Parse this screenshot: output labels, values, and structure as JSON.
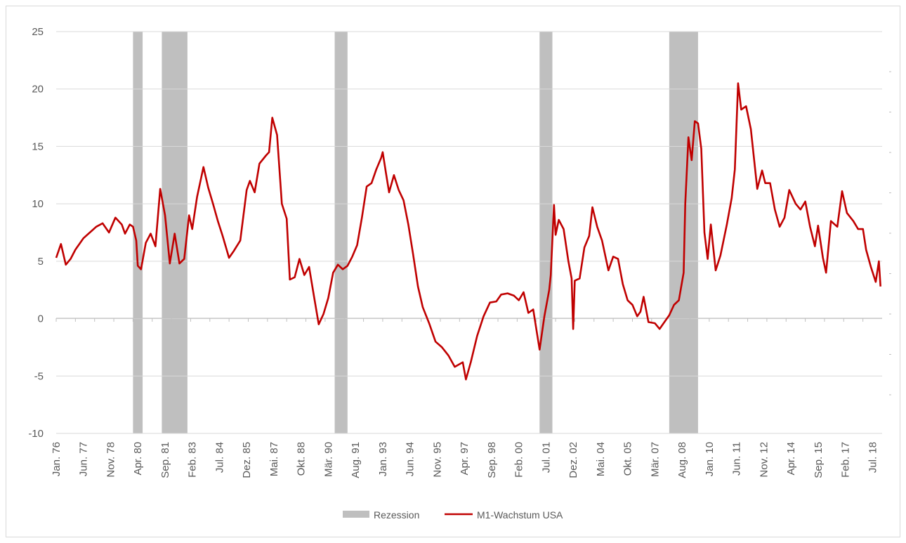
{
  "chart_data": {
    "type": "line",
    "title": "",
    "xlabel": "",
    "ylabel": "",
    "ylim": [
      -10,
      25
    ],
    "yticks": [
      25,
      20,
      15,
      10,
      5,
      0,
      -5,
      -10
    ],
    "ytick_labels": [
      "25",
      "20",
      "15",
      "10",
      "5",
      "0",
      "-5",
      "-10"
    ],
    "x_range": [
      "1976-01",
      "2019-01"
    ],
    "xtick_dates": [
      "1976-01",
      "1977-06",
      "1978-11",
      "1980-04",
      "1981-09",
      "1983-02",
      "1984-07",
      "1985-12",
      "1987-05",
      "1988-10",
      "1990-03",
      "1991-08",
      "1993-01",
      "1994-06",
      "1995-11",
      "1997-04",
      "1998-09",
      "2000-02",
      "2001-07",
      "2002-12",
      "2004-05",
      "2005-10",
      "2007-03",
      "2008-08",
      "2010-01",
      "2011-06",
      "2012-11",
      "2014-04",
      "2015-09",
      "2017-02",
      "2018-07"
    ],
    "xtick_labels": [
      "Jan. 76",
      "Jun. 77",
      "Nov. 78",
      "Apr. 80",
      "Sep. 81",
      "Feb. 83",
      "Jul. 84",
      "Dez. 85",
      "Mai. 87",
      "Okt. 88",
      "Mär. 90",
      "Aug. 91",
      "Jan. 93",
      "Jun. 94",
      "Nov. 95",
      "Apr. 97",
      "Sep. 98",
      "Feb. 00",
      "Jul. 01",
      "Dez. 02",
      "Mai. 04",
      "Okt. 05",
      "Mär. 07",
      "Aug. 08",
      "Jan. 10",
      "Jun. 11",
      "Nov. 12",
      "Apr. 14",
      "Sep. 15",
      "Feb. 17",
      "Jul. 18"
    ],
    "grid": true,
    "legend_placement": "bottom",
    "recessions": [
      {
        "start": "1980-01",
        "end": "1980-07"
      },
      {
        "start": "1981-07",
        "end": "1982-11"
      },
      {
        "start": "1990-07",
        "end": "1991-03"
      },
      {
        "start": "2001-03",
        "end": "2001-11"
      },
      {
        "start": "2007-12",
        "end": "2009-06"
      }
    ],
    "series": [
      {
        "name": "M1-Wachstum USA",
        "color": "#c00000",
        "points": [
          [
            "1976-01",
            5.3
          ],
          [
            "1976-04",
            6.5
          ],
          [
            "1976-07",
            4.7
          ],
          [
            "1976-10",
            5.2
          ],
          [
            "1977-01",
            6.0
          ],
          [
            "1977-06",
            7.0
          ],
          [
            "1977-10",
            7.5
          ],
          [
            "1978-02",
            8.0
          ],
          [
            "1978-06",
            8.3
          ],
          [
            "1978-10",
            7.5
          ],
          [
            "1979-02",
            8.8
          ],
          [
            "1979-06",
            8.2
          ],
          [
            "1979-08",
            7.4
          ],
          [
            "1979-11",
            8.2
          ],
          [
            "1980-01",
            8.0
          ],
          [
            "1980-03",
            6.8
          ],
          [
            "1980-04",
            4.6
          ],
          [
            "1980-06",
            4.3
          ],
          [
            "1980-09",
            6.6
          ],
          [
            "1980-12",
            7.4
          ],
          [
            "1981-03",
            6.3
          ],
          [
            "1981-06",
            11.3
          ],
          [
            "1981-09",
            9.0
          ],
          [
            "1981-12",
            4.8
          ],
          [
            "1982-03",
            7.4
          ],
          [
            "1982-06",
            4.8
          ],
          [
            "1982-09",
            5.2
          ],
          [
            "1982-12",
            9.0
          ],
          [
            "1983-02",
            7.8
          ],
          [
            "1983-05",
            10.6
          ],
          [
            "1983-09",
            13.2
          ],
          [
            "1983-12",
            11.4
          ],
          [
            "1984-03",
            10.0
          ],
          [
            "1984-06",
            8.5
          ],
          [
            "1984-09",
            7.2
          ],
          [
            "1985-01",
            5.3
          ],
          [
            "1985-04",
            5.9
          ],
          [
            "1985-08",
            6.8
          ],
          [
            "1985-12",
            11.2
          ],
          [
            "1986-02",
            12.0
          ],
          [
            "1986-05",
            11.0
          ],
          [
            "1986-08",
            13.5
          ],
          [
            "1986-12",
            14.2
          ],
          [
            "1987-02",
            14.5
          ],
          [
            "1987-04",
            17.5
          ],
          [
            "1987-07",
            16.0
          ],
          [
            "1987-10",
            10.0
          ],
          [
            "1988-01",
            8.7
          ],
          [
            "1988-03",
            3.4
          ],
          [
            "1988-06",
            3.6
          ],
          [
            "1988-09",
            5.2
          ],
          [
            "1988-12",
            3.8
          ],
          [
            "1989-03",
            4.5
          ],
          [
            "1989-06",
            2.0
          ],
          [
            "1989-09",
            -0.5
          ],
          [
            "1989-12",
            0.4
          ],
          [
            "1990-03",
            1.8
          ],
          [
            "1990-06",
            4.0
          ],
          [
            "1990-09",
            4.7
          ],
          [
            "1990-12",
            4.3
          ],
          [
            "1991-03",
            4.6
          ],
          [
            "1991-06",
            5.4
          ],
          [
            "1991-09",
            6.4
          ],
          [
            "1991-12",
            8.8
          ],
          [
            "1992-03",
            11.5
          ],
          [
            "1992-06",
            11.8
          ],
          [
            "1992-09",
            13.0
          ],
          [
            "1992-12",
            14.0
          ],
          [
            "1993-01",
            14.5
          ],
          [
            "1993-03",
            12.7
          ],
          [
            "1993-05",
            11.0
          ],
          [
            "1993-08",
            12.5
          ],
          [
            "1993-11",
            11.2
          ],
          [
            "1994-02",
            10.3
          ],
          [
            "1994-05",
            8.2
          ],
          [
            "1994-08",
            5.6
          ],
          [
            "1994-11",
            2.8
          ],
          [
            "1995-02",
            1.0
          ],
          [
            "1995-06",
            -0.4
          ],
          [
            "1995-10",
            -2.0
          ],
          [
            "1996-02",
            -2.5
          ],
          [
            "1996-06",
            -3.2
          ],
          [
            "1996-10",
            -4.2
          ],
          [
            "1997-03",
            -3.8
          ],
          [
            "1997-05",
            -5.3
          ],
          [
            "1997-08",
            -3.8
          ],
          [
            "1997-12",
            -1.5
          ],
          [
            "1998-04",
            0.2
          ],
          [
            "1998-08",
            1.4
          ],
          [
            "1998-12",
            1.5
          ],
          [
            "1999-03",
            2.1
          ],
          [
            "1999-07",
            2.2
          ],
          [
            "1999-11",
            2.0
          ],
          [
            "2000-02",
            1.6
          ],
          [
            "2000-05",
            2.3
          ],
          [
            "2000-08",
            0.5
          ],
          [
            "2000-11",
            0.8
          ],
          [
            "2001-03",
            -2.7
          ],
          [
            "2001-06",
            0.2
          ],
          [
            "2001-09",
            2.5
          ],
          [
            "2001-10",
            3.8
          ],
          [
            "2001-12",
            9.9
          ],
          [
            "2002-01",
            7.3
          ],
          [
            "2002-03",
            8.6
          ],
          [
            "2002-06",
            7.8
          ],
          [
            "2002-09",
            5.0
          ],
          [
            "2002-11",
            3.5
          ],
          [
            "2002-12",
            -0.9
          ],
          [
            "2003-01",
            3.3
          ],
          [
            "2003-04",
            3.5
          ],
          [
            "2003-07",
            6.2
          ],
          [
            "2003-10",
            7.2
          ],
          [
            "2003-12",
            9.7
          ],
          [
            "2004-03",
            8.0
          ],
          [
            "2004-06",
            6.8
          ],
          [
            "2004-10",
            4.2
          ],
          [
            "2005-01",
            5.4
          ],
          [
            "2005-04",
            5.2
          ],
          [
            "2005-07",
            3.0
          ],
          [
            "2005-10",
            1.6
          ],
          [
            "2006-01",
            1.2
          ],
          [
            "2006-04",
            0.2
          ],
          [
            "2006-06",
            0.6
          ],
          [
            "2006-08",
            1.9
          ],
          [
            "2006-11",
            -0.3
          ],
          [
            "2007-03",
            -0.4
          ],
          [
            "2007-06",
            -0.9
          ],
          [
            "2007-09",
            -0.3
          ],
          [
            "2007-12",
            0.3
          ],
          [
            "2008-03",
            1.2
          ],
          [
            "2008-06",
            1.6
          ],
          [
            "2008-09",
            4.0
          ],
          [
            "2008-10",
            10.0
          ],
          [
            "2008-12",
            15.8
          ],
          [
            "2009-02",
            13.8
          ],
          [
            "2009-04",
            17.2
          ],
          [
            "2009-06",
            17.0
          ],
          [
            "2009-08",
            14.8
          ],
          [
            "2009-10",
            7.5
          ],
          [
            "2009-12",
            5.2
          ],
          [
            "2010-02",
            8.2
          ],
          [
            "2010-05",
            4.2
          ],
          [
            "2010-08",
            5.5
          ],
          [
            "2010-12",
            8.2
          ],
          [
            "2011-03",
            10.5
          ],
          [
            "2011-05",
            13.0
          ],
          [
            "2011-07",
            20.5
          ],
          [
            "2011-09",
            18.2
          ],
          [
            "2011-12",
            18.5
          ],
          [
            "2012-03",
            16.5
          ],
          [
            "2012-07",
            11.3
          ],
          [
            "2012-10",
            12.9
          ],
          [
            "2012-12",
            11.8
          ],
          [
            "2013-03",
            11.8
          ],
          [
            "2013-06",
            9.5
          ],
          [
            "2013-09",
            8.0
          ],
          [
            "2013-12",
            8.8
          ],
          [
            "2014-03",
            11.2
          ],
          [
            "2014-07",
            10.0
          ],
          [
            "2014-10",
            9.5
          ],
          [
            "2015-01",
            10.2
          ],
          [
            "2015-04",
            8.0
          ],
          [
            "2015-07",
            6.3
          ],
          [
            "2015-09",
            8.1
          ],
          [
            "2015-12",
            5.3
          ],
          [
            "2016-02",
            4.0
          ],
          [
            "2016-05",
            8.5
          ],
          [
            "2016-09",
            8.0
          ],
          [
            "2016-12",
            11.1
          ],
          [
            "2017-03",
            9.2
          ],
          [
            "2017-07",
            8.5
          ],
          [
            "2017-10",
            7.8
          ],
          [
            "2018-01",
            7.8
          ],
          [
            "2018-03",
            6.0
          ],
          [
            "2018-06",
            4.5
          ],
          [
            "2018-09",
            3.2
          ],
          [
            "2018-11",
            5.0
          ],
          [
            "2018-12",
            2.8
          ]
        ]
      }
    ],
    "legend": [
      {
        "name": "Rezession",
        "type": "bar",
        "color": "#bfbfbf"
      },
      {
        "name": "M1-Wachstum USA",
        "type": "line",
        "color": "#c00000"
      }
    ]
  }
}
